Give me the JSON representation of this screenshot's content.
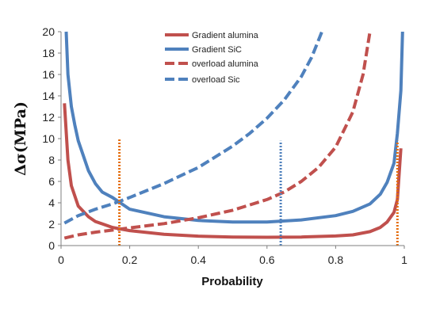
{
  "chart_data": {
    "type": "line",
    "title": "",
    "xlabel": "Probability",
    "ylabel": "Δσ(MPa)",
    "xlim": [
      0,
      1
    ],
    "ylim": [
      0,
      20
    ],
    "x_ticks": [
      "0",
      "0.2",
      "0.4",
      "0.6",
      "0.8",
      "1"
    ],
    "y_ticks": [
      "0",
      "2",
      "4",
      "6",
      "8",
      "10",
      "12",
      "14",
      "16",
      "18",
      "20"
    ],
    "grid": false,
    "legend_position": "top-center",
    "series": [
      {
        "name": "Gradient alumina",
        "style": "solid",
        "color": "#C0504D",
        "points": [
          [
            0.01,
            13.3
          ],
          [
            0.02,
            8.0
          ],
          [
            0.03,
            5.6
          ],
          [
            0.05,
            3.7
          ],
          [
            0.08,
            2.7
          ],
          [
            0.1,
            2.25
          ],
          [
            0.15,
            1.7
          ],
          [
            0.2,
            1.4
          ],
          [
            0.3,
            1.05
          ],
          [
            0.4,
            0.88
          ],
          [
            0.5,
            0.8
          ],
          [
            0.6,
            0.78
          ],
          [
            0.7,
            0.8
          ],
          [
            0.8,
            0.9
          ],
          [
            0.85,
            1.0
          ],
          [
            0.9,
            1.3
          ],
          [
            0.93,
            1.7
          ],
          [
            0.95,
            2.2
          ],
          [
            0.97,
            3.1
          ],
          [
            0.98,
            4.3
          ],
          [
            0.99,
            9.1
          ]
        ]
      },
      {
        "name": "Gradient SiC",
        "style": "solid",
        "color": "#4F81BD",
        "points": [
          [
            0.015,
            20.0
          ],
          [
            0.02,
            16.0
          ],
          [
            0.03,
            13.0
          ],
          [
            0.04,
            11.3
          ],
          [
            0.05,
            9.8
          ],
          [
            0.08,
            7.0
          ],
          [
            0.1,
            5.8
          ],
          [
            0.12,
            5.0
          ],
          [
            0.15,
            4.5
          ],
          [
            0.2,
            3.4
          ],
          [
            0.3,
            2.7
          ],
          [
            0.4,
            2.35
          ],
          [
            0.5,
            2.2
          ],
          [
            0.6,
            2.2
          ],
          [
            0.7,
            2.4
          ],
          [
            0.8,
            2.8
          ],
          [
            0.85,
            3.2
          ],
          [
            0.9,
            3.9
          ],
          [
            0.93,
            4.8
          ],
          [
            0.95,
            5.9
          ],
          [
            0.97,
            7.7
          ],
          [
            0.98,
            10.5
          ],
          [
            0.99,
            14.5
          ],
          [
            0.995,
            20.0
          ]
        ]
      },
      {
        "name": "overload alumina",
        "style": "dashed",
        "color": "#C0504D",
        "points": [
          [
            0.01,
            0.7
          ],
          [
            0.05,
            1.0
          ],
          [
            0.1,
            1.25
          ],
          [
            0.2,
            1.65
          ],
          [
            0.3,
            2.05
          ],
          [
            0.4,
            2.6
          ],
          [
            0.5,
            3.3
          ],
          [
            0.6,
            4.3
          ],
          [
            0.65,
            5.0
          ],
          [
            0.7,
            6.0
          ],
          [
            0.75,
            7.3
          ],
          [
            0.8,
            9.2
          ],
          [
            0.85,
            12.5
          ],
          [
            0.88,
            16.0
          ],
          [
            0.9,
            20.0
          ]
        ]
      },
      {
        "name": "overload Sic",
        "style": "dashed",
        "color": "#4F81BD",
        "points": [
          [
            0.01,
            2.1
          ],
          [
            0.05,
            2.8
          ],
          [
            0.1,
            3.4
          ],
          [
            0.15,
            3.9
          ],
          [
            0.2,
            4.5
          ],
          [
            0.3,
            5.8
          ],
          [
            0.4,
            7.3
          ],
          [
            0.5,
            9.3
          ],
          [
            0.55,
            10.5
          ],
          [
            0.6,
            11.9
          ],
          [
            0.65,
            13.6
          ],
          [
            0.7,
            15.8
          ],
          [
            0.73,
            17.6
          ],
          [
            0.76,
            20.0
          ]
        ]
      }
    ],
    "reference_lines": [
      {
        "x": 0.17,
        "y_top": 10.0,
        "color": "#E46C0A",
        "style": "dotted"
      },
      {
        "x": 0.64,
        "y_top": 9.8,
        "color": "#4F81BD",
        "style": "dotted"
      },
      {
        "x": 0.98,
        "y_top": 9.8,
        "color": "#E46C0A",
        "style": "dotted"
      }
    ]
  }
}
